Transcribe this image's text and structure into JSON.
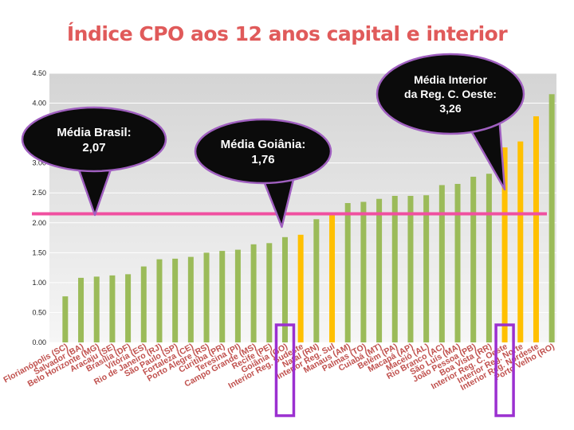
{
  "title": "Índice CPO aos 12 anos capital e interior",
  "colors": {
    "title": "#e05a5a",
    "bar_capital": "#9bbb59",
    "bar_interior": "#ffc000",
    "reference_line": "#f050a0",
    "callout_fill": "#0b0b0b",
    "callout_stroke": "#a060c0",
    "highlight_box": "#9b30d0",
    "label_text": "#c0504d",
    "plot_background": "#e6e6e6"
  },
  "callouts": [
    {
      "id": "brasil",
      "lines": [
        "Média Brasil:",
        "2,07"
      ]
    },
    {
      "id": "goiania",
      "lines": [
        "Média Goiânia:",
        "1,76"
      ]
    },
    {
      "id": "interior-co",
      "lines": [
        "Média Interior",
        "da Reg. C. Oeste:",
        "3,26"
      ]
    }
  ],
  "chart_data": {
    "type": "bar",
    "ylim": [
      0,
      4.5
    ],
    "yticks": [
      "0.00",
      "0.50",
      "1.00",
      "1.50",
      "2.00",
      "2.50",
      "3.00",
      "4.00",
      "4.50"
    ],
    "ytick_values": [
      0,
      0.5,
      1,
      1.5,
      2,
      2.5,
      3,
      4,
      4.5
    ],
    "grid": true,
    "reference_line": 2.15,
    "categories": [
      "Florianópolis (SC)",
      "Salvador (BA)",
      "Belo Horizonte (MG)",
      "Aracaju (SE)",
      "Brasília (DF)",
      "Vitória (ES)",
      "Rio de Janeiro (RJ)",
      "São Paulo (SP)",
      "Fortaleza (CE)",
      "Porto Alegre (RS)",
      "Curitiba (PR)",
      "Teresina (PI)",
      "Campo Grande (MS)",
      "Recife (PE)",
      "Goiânia (GO)",
      "Interior Reg. Sudeste",
      "Natal (RN)",
      "Interior Reg. Sul",
      "Manaus (AM)",
      "Palmas (TO)",
      "Cuiabá (MT)",
      "Belém (PA)",
      "Macapá (AP)",
      "Maceió (AL)",
      "Rio Branco (AC)",
      "São Luís (MA)",
      "João Pessoa (PB)",
      "Boa Vista (RR)",
      "Interior Reg. C. Oeste",
      "Interior Reg. Norte",
      "Interior Reg. Nordeste",
      "Porto Velho (RO)"
    ],
    "values": [
      0.77,
      1.08,
      1.1,
      1.12,
      1.14,
      1.27,
      1.39,
      1.4,
      1.43,
      1.5,
      1.53,
      1.55,
      1.64,
      1.66,
      1.76,
      1.8,
      2.06,
      2.13,
      2.33,
      2.35,
      2.4,
      2.45,
      2.45,
      2.46,
      2.63,
      2.65,
      2.77,
      2.82,
      3.26,
      3.36,
      3.78,
      4.15
    ],
    "bar_types": [
      "capital",
      "capital",
      "capital",
      "capital",
      "capital",
      "capital",
      "capital",
      "capital",
      "capital",
      "capital",
      "capital",
      "capital",
      "capital",
      "capital",
      "capital",
      "interior",
      "capital",
      "interior",
      "capital",
      "capital",
      "capital",
      "capital",
      "capital",
      "capital",
      "capital",
      "capital",
      "capital",
      "capital",
      "interior",
      "interior",
      "interior",
      "capital"
    ],
    "highlighted": [
      "Goiânia (GO)",
      "Interior Reg. C. Oeste"
    ]
  }
}
